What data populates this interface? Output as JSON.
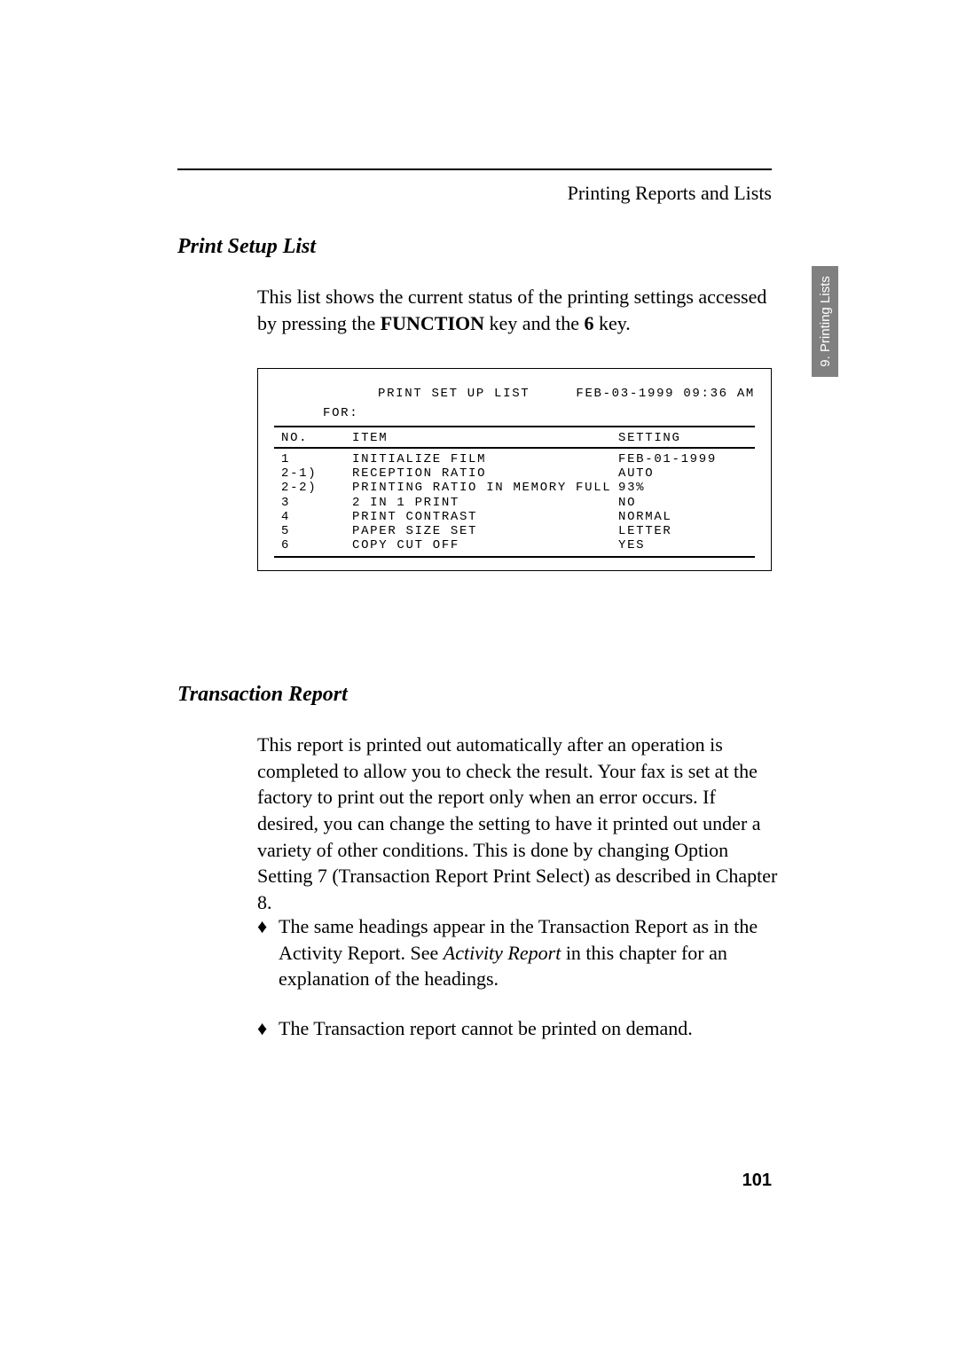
{
  "header": {
    "caption": "Printing Reports and Lists"
  },
  "side_tab": {
    "label": "9. Printing Lists",
    "bg_color": "#808080",
    "text_color": "#ffffff"
  },
  "print_setup": {
    "title": "Print Setup List",
    "intro_pre": "This list shows the current status of the printing settings accessed by pressing the ",
    "intro_func": "FUNCTION",
    "intro_mid": " key and the ",
    "intro_six": "6",
    "intro_post": " key."
  },
  "list": {
    "title": "PRINT SET UP LIST",
    "date": "FEB-03-1999 09:36 AM",
    "for_label": "FOR:",
    "head_no": "NO.",
    "head_item": "ITEM",
    "head_setting": "SETTING",
    "rows": [
      {
        "no": "1",
        "item": "INITIALIZE FILM",
        "setting": "FEB-01-1999"
      },
      {
        "no": "2-1)",
        "item": "RECEPTION RATIO",
        "setting": "AUTO"
      },
      {
        "no": "2-2)",
        "item": "PRINTING RATIO IN MEMORY FULL",
        "setting": "93%"
      },
      {
        "no": "3",
        "item": "2 IN 1 PRINT",
        "setting": "NO"
      },
      {
        "no": "4",
        "item": "PRINT CONTRAST",
        "setting": "NORMAL"
      },
      {
        "no": "5",
        "item": "PAPER SIZE SET",
        "setting": "LETTER"
      },
      {
        "no": "6",
        "item": "COPY CUT OFF",
        "setting": "YES"
      }
    ]
  },
  "transaction": {
    "title": "Transaction Report",
    "para": "This report is printed out automatically after an operation is completed to allow you to check the result. Your fax is set at the factory to print out the report only when an error occurs. If desired, you can change the setting to have it printed out under a variety of other conditions. This is done by changing Option Setting 7 (Transaction Report Print Select) as described in Chapter 8.",
    "bullet1_pre": "The same headings appear in the Transaction Report as in the Activity Report. See ",
    "bullet1_italic": "Activity Report",
    "bullet1_post": " in this chapter for an explanation of the headings.",
    "bullet2": "The Transaction report cannot be printed on demand."
  },
  "page_number": "101",
  "glyphs": {
    "bullet": "♦"
  }
}
